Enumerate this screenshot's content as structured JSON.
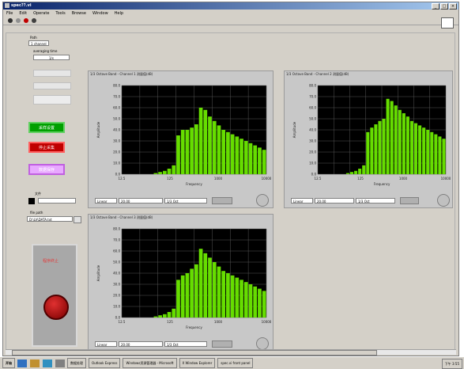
{
  "window": {
    "title": "spec??.vi"
  },
  "menu": [
    "File",
    "Edit",
    "Operate",
    "Tools",
    "Browse",
    "Window",
    "Help"
  ],
  "sidebar": {
    "header_label": "Path",
    "header_value": "1 channel",
    "averaging_label": "averaging time",
    "averaging_value": "1/s",
    "buttons": [
      {
        "label": "采样设置",
        "color": "green"
      },
      {
        "label": "停止采集",
        "color": "red"
      },
      {
        "label": "数据保存",
        "color": "purple"
      }
    ],
    "file_label": "文件",
    "file_path_label": "file path",
    "file_path_value": "D:\\LV\\DATA.txt",
    "stop_label": "程序终止"
  },
  "graphs": [
    {
      "title": "1/3 Octave Band - Channel 1 测量值(dB)",
      "ylabel": "Amplitude",
      "xlabel": "Frequency",
      "yticks": [
        "80.0",
        "70.0",
        "60.0",
        "50.0",
        "40.0",
        "30.0",
        "20.0",
        "10.0",
        "0.0"
      ],
      "xticks": [
        "12.5",
        "125",
        "1000",
        "10000"
      ],
      "field1": "Linear",
      "field2": "20.00",
      "field3": "1/3 Oct"
    },
    {
      "title": "1/3 Octave Band - Channel 2 测量值(dB)",
      "ylabel": "Amplitude",
      "xlabel": "Frequency",
      "yticks": [
        "80.0",
        "70.0",
        "60.0",
        "50.0",
        "40.0",
        "30.0",
        "20.0",
        "10.0",
        "0.0"
      ],
      "xticks": [
        "12.5",
        "125",
        "1000",
        "10000"
      ],
      "field1": "Linear",
      "field2": "20.00",
      "field3": "1/3 Oct"
    },
    {
      "title": "1/3 Octave Band - Channel 3 测量值(dB)",
      "ylabel": "Amplitude",
      "xlabel": "Frequency",
      "yticks": [
        "80.0",
        "70.0",
        "60.0",
        "50.0",
        "40.0",
        "30.0",
        "20.0",
        "10.0",
        "0.0"
      ],
      "xticks": [
        "12.5",
        "125",
        "1000",
        "10000"
      ],
      "field1": "Linear",
      "field2": "20.00",
      "field3": "1/3 Oct"
    }
  ],
  "chart_data": [
    {
      "type": "bar",
      "ylim": [
        0,
        80
      ],
      "values": [
        0,
        0,
        0,
        0,
        0,
        0,
        0,
        1,
        2,
        3,
        5,
        8,
        35,
        40,
        40,
        42,
        45,
        60,
        58,
        52,
        48,
        44,
        40,
        38,
        36,
        34,
        32,
        30,
        28,
        26,
        24,
        22
      ]
    },
    {
      "type": "bar",
      "ylim": [
        0,
        80
      ],
      "values": [
        0,
        0,
        0,
        0,
        0,
        0,
        0,
        1,
        2,
        3,
        5,
        8,
        38,
        42,
        45,
        48,
        50,
        68,
        66,
        62,
        58,
        55,
        52,
        48,
        46,
        44,
        42,
        40,
        38,
        36,
        34,
        32
      ]
    },
    {
      "type": "bar",
      "ylim": [
        0,
        80
      ],
      "values": [
        0,
        0,
        0,
        0,
        0,
        0,
        0,
        1,
        2,
        3,
        5,
        8,
        34,
        38,
        40,
        44,
        48,
        62,
        58,
        54,
        50,
        46,
        42,
        40,
        38,
        36,
        34,
        32,
        30,
        28,
        26,
        24
      ]
    }
  ],
  "taskbar": {
    "start": "开始",
    "tasks": [
      "数据处理",
      "Outlook Express",
      "Windows资源管理器 - Microsoft",
      "X Window Explorer",
      "spec.vi front panel"
    ],
    "clock": "下午 3:55"
  },
  "colors": {
    "bar": "#66dd00",
    "plot_bg": "#000000",
    "grid": "#555555"
  }
}
